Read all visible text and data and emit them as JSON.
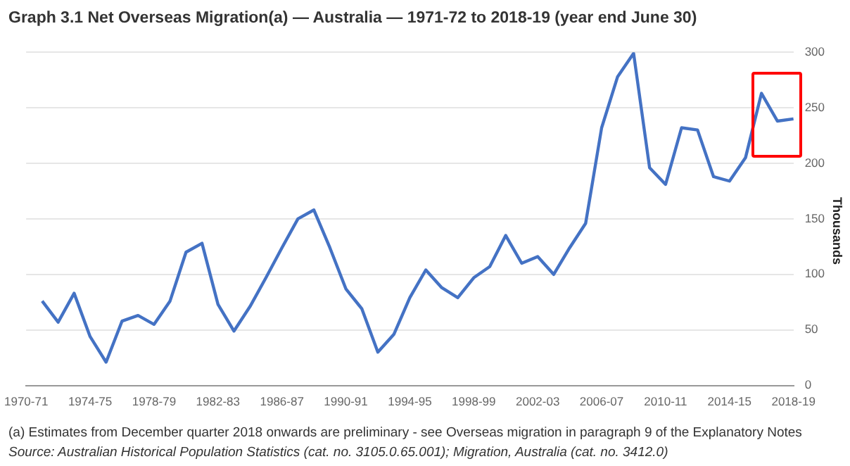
{
  "chart_data": {
    "type": "line",
    "title": "Graph 3.1 Net Overseas Migration(a) — Australia — 1971-72 to 2018-19 (year end June 30)",
    "ylabel": "Thousands",
    "categories": [
      "1970-71",
      null,
      null,
      null,
      "1974-75",
      null,
      null,
      null,
      "1978-79",
      null,
      null,
      null,
      "1982-83",
      null,
      null,
      null,
      "1986-87",
      null,
      null,
      null,
      "1990-91",
      null,
      null,
      null,
      "1994-95",
      null,
      null,
      null,
      "1998-99",
      null,
      null,
      null,
      "2002-03",
      null,
      null,
      null,
      "2006-07",
      null,
      null,
      null,
      "2010-11",
      null,
      null,
      null,
      "2014-15",
      null,
      null,
      null,
      "2018-19"
    ],
    "series": [
      {
        "color": "#4472c4",
        "values": [
          null,
          76,
          57,
          83,
          44,
          21,
          58,
          63,
          55,
          76,
          120,
          128,
          73,
          49,
          71,
          97,
          124,
          150,
          158,
          124,
          87,
          69,
          30,
          46,
          79,
          104,
          88,
          79,
          97,
          107,
          135,
          110,
          116,
          100,
          124,
          146,
          232,
          278,
          299,
          196,
          181,
          232,
          230,
          188,
          184,
          205,
          263,
          238,
          240
        ]
      }
    ],
    "ylim": [
      0,
      300
    ],
    "yticks": [
      0,
      50,
      100,
      150,
      200,
      250,
      300
    ],
    "grid": "y",
    "legend": false,
    "marker": "none",
    "line_style": "solid",
    "annotations": [
      "(a) Estimates from December quarter 2018 onwards are preliminary - see Overseas migration in paragraph 9 of the Explanatory Notes",
      "Source: Australian Historical Population Statistics (cat. no. 3105.0.65.001); Migration, Australia (cat. no. 3412.0)"
    ]
  }
}
